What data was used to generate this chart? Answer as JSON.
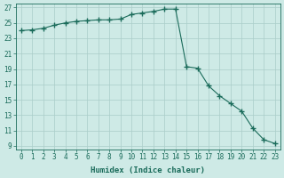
{
  "x": [
    0,
    1,
    2,
    3,
    4,
    5,
    6,
    7,
    8,
    9,
    10,
    11,
    12,
    13,
    14,
    15,
    16,
    17,
    18,
    19,
    20,
    21,
    22,
    23
  ],
  "y": [
    24.0,
    24.1,
    24.3,
    24.7,
    25.0,
    25.2,
    25.3,
    25.4,
    25.4,
    25.5,
    26.1,
    26.3,
    26.5,
    26.8,
    26.8,
    19.3,
    19.1,
    16.8,
    15.5,
    14.5,
    13.5,
    11.3,
    9.8,
    9.3
  ],
  "line_color": "#1a6b5a",
  "marker": "+",
  "marker_size": 4,
  "bg_color": "#ceeae6",
  "grid_color": "#aacdc9",
  "xlabel": "Humidex (Indice chaleur)",
  "xlim": [
    -0.5,
    23.5
  ],
  "ylim": [
    8.5,
    27.5
  ],
  "yticks": [
    9,
    11,
    13,
    15,
    17,
    19,
    21,
    23,
    25,
    27
  ],
  "xticks": [
    0,
    1,
    2,
    3,
    4,
    5,
    6,
    7,
    8,
    9,
    10,
    11,
    12,
    13,
    14,
    15,
    16,
    17,
    18,
    19,
    20,
    21,
    22,
    23
  ],
  "xtick_labels": [
    "0",
    "1",
    "2",
    "3",
    "4",
    "5",
    "6",
    "7",
    "8",
    "9",
    "10",
    "11",
    "12",
    "13",
    "14",
    "15",
    "16",
    "17",
    "18",
    "19",
    "20",
    "21",
    "22",
    "23"
  ],
  "label_fontsize": 6.5,
  "tick_fontsize": 5.5,
  "linewidth": 0.8,
  "marker_linewidth": 1.0
}
